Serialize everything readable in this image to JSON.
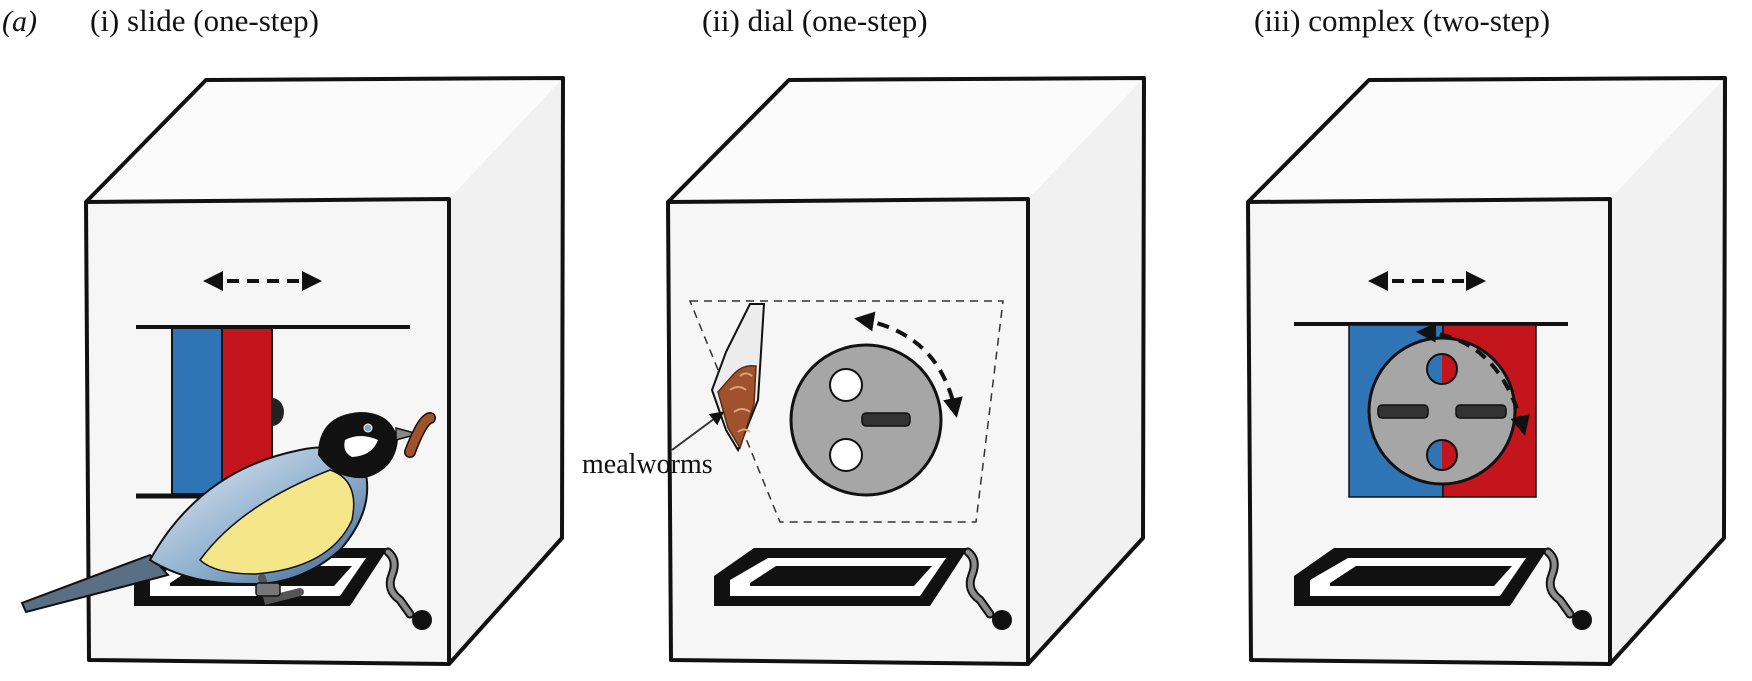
{
  "figure": {
    "panel_label": "(a)",
    "panels": [
      {
        "id": "slide",
        "title": "(i) slide (one-step)"
      },
      {
        "id": "dial",
        "title": "(ii) dial (one-step)"
      },
      {
        "id": "complex",
        "title": "(iii) complex (two-step)"
      }
    ],
    "annotations": {
      "mealworms": "mealworms"
    },
    "colors": {
      "blue": "#2f74b5",
      "red": "#c5151c",
      "dial_grey": "#a6a6a6",
      "handle_grey": "#8c8c8c",
      "mealworm_brown": "#a0522d",
      "bird_yellow": "#f6e68a",
      "bird_blue": "#6f93b6",
      "outline": "#111111"
    }
  }
}
